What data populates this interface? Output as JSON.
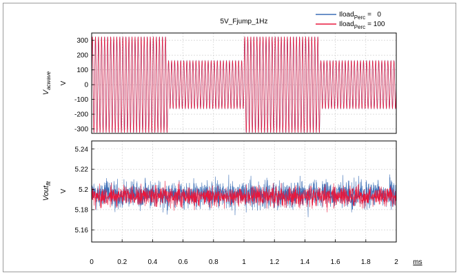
{
  "chart_data": [
    {
      "type": "line",
      "title": "5V_Fjump_1Hz",
      "ylabel": "Vacwave",
      "ylabel_main": "V",
      "ylabel_sub": "acwave",
      "yunit": "V",
      "xlim": [
        0,
        2
      ],
      "ylim": [
        -330,
        350
      ],
      "yticks": [
        300,
        200,
        100,
        0,
        -100,
        -200,
        -300
      ],
      "yticklabels": [
        "300",
        "200",
        "100",
        "0",
        "-100",
        "-200",
        "-300"
      ],
      "xgrid": [
        0,
        0.2,
        0.4,
        0.6,
        0.8,
        1.0,
        1.2,
        1.4,
        1.6,
        1.8,
        2.0
      ],
      "grid": true,
      "series": [
        {
          "name": "Iload_Perc = 0",
          "color": "#3a6db5",
          "segments": [
            {
              "x_start": 0.0,
              "x_end": 0.5,
              "amplitude": 325
            },
            {
              "x_start": 0.5,
              "x_end": 1.0,
              "amplitude": 162
            },
            {
              "x_start": 1.0,
              "x_end": 1.5,
              "amplitude": 325
            },
            {
              "x_start": 1.5,
              "x_end": 2.0,
              "amplitude": 162
            }
          ]
        },
        {
          "name": "Iload_Perc = 100",
          "color": "#e8173c",
          "segments": [
            {
              "x_start": 0.0,
              "x_end": 0.5,
              "amplitude": 325
            },
            {
              "x_start": 0.5,
              "x_end": 1.0,
              "amplitude": 162
            },
            {
              "x_start": 1.0,
              "x_end": 1.5,
              "amplitude": 325
            },
            {
              "x_start": 1.5,
              "x_end": 2.0,
              "amplitude": 162
            }
          ]
        }
      ]
    },
    {
      "type": "line",
      "ylabel": "Voutflt",
      "ylabel_main": "Vout",
      "ylabel_sub": "flt",
      "yunit": "V",
      "xlabel": "ms",
      "xlim": [
        0,
        2
      ],
      "ylim": [
        5.148,
        5.248
      ],
      "yticks": [
        5.24,
        5.22,
        5.2,
        5.18,
        5.16
      ],
      "yticklabels": [
        "5.24",
        "5.22",
        "5.2",
        "5.18",
        "5.16"
      ],
      "xticks": [
        0,
        0.2,
        0.4,
        0.6,
        0.8,
        1.0,
        1.2,
        1.4,
        1.6,
        1.8,
        2.0
      ],
      "xticklabels": [
        "0",
        "0.2",
        "0.4",
        "0.6",
        "0.8",
        "1",
        "1.2",
        "1.4",
        "1.6",
        "1.8",
        "2"
      ],
      "grid": true,
      "series": [
        {
          "name": "Iload_Perc = 0",
          "color": "#3a6db5",
          "mean": 5.195,
          "std": 0.011
        },
        {
          "name": "Iload_Perc = 100",
          "color": "#e8173c",
          "mean": 5.193,
          "std": 0.008
        }
      ]
    }
  ],
  "legend": {
    "placement": "top-right",
    "items": [
      {
        "label_main": "Iload",
        "label_sub": "Perc",
        "label_value": "=   0",
        "color": "#3a6db5"
      },
      {
        "label_main": "Iload",
        "label_sub": "Perc",
        "label_value": "= 100",
        "color": "#e8173c"
      }
    ]
  }
}
